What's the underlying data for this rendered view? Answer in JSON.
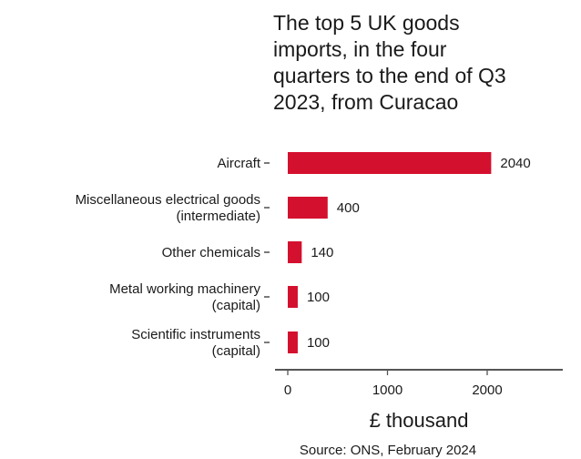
{
  "chart_data": {
    "type": "bar",
    "orientation": "horizontal",
    "title": "The top 5 UK goods imports, in the four quarters to the end of Q3 2023, from Curacao",
    "title_lines": [
      "The top 5 UK goods",
      "imports, in the four",
      "quarters to the end of Q3",
      "2023, from Curacao"
    ],
    "categories": [
      "Aircraft",
      "Miscellaneous electrical goods (intermediate)",
      "Other chemicals",
      "Metal working machinery (capital)",
      "Scientific instruments (capital)"
    ],
    "category_lines": [
      [
        "Aircraft"
      ],
      [
        "Miscellaneous electrical goods",
        "(intermediate)"
      ],
      [
        "Other chemicals"
      ],
      [
        "Metal working machinery",
        "(capital)"
      ],
      [
        "Scientific instruments",
        "(capital)"
      ]
    ],
    "values": [
      2040,
      400,
      140,
      100,
      100
    ],
    "value_labels": [
      "2040",
      "400",
      "140",
      "100",
      "100"
    ],
    "xlabel": "£ thousand",
    "ylabel": "",
    "xlim": [
      0,
      2700
    ],
    "xticks": [
      0,
      1000,
      2000
    ],
    "xtick_labels": [
      "0",
      "1000",
      "2000"
    ],
    "bar_color": "#d4102f",
    "grid": false,
    "legend": "none",
    "caption": "Source: ONS, February 2024"
  }
}
